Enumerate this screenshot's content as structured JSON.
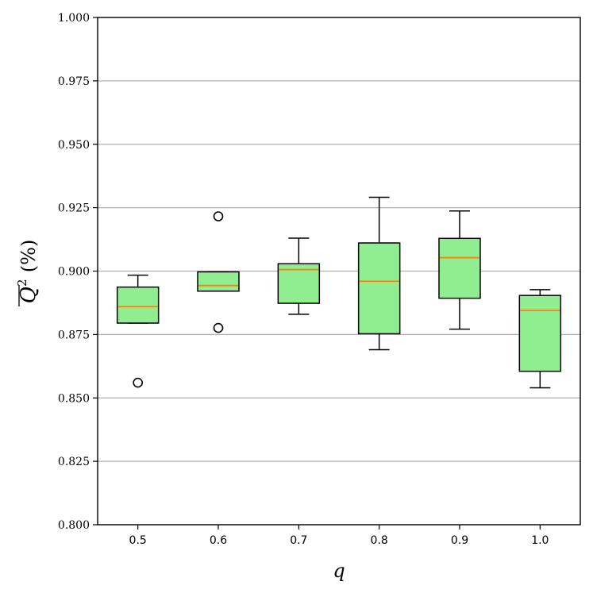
{
  "chart_data": {
    "type": "box",
    "xlabel": "q",
    "ylabel": "Q",
    "ylabel_superscript": "2",
    "ylabel_suffix": "(%)",
    "ylim": [
      0.8,
      1.0
    ],
    "yticks": [
      "0.800",
      "0.825",
      "0.850",
      "0.875",
      "0.900",
      "0.925",
      "0.950",
      "0.975",
      "1.000"
    ],
    "grid": "horizontal",
    "box_fill": "#90ee90",
    "median_color": "#ff7f0e",
    "categories": [
      "0.5",
      "0.6",
      "0.7",
      "0.8",
      "0.9",
      "1.0"
    ],
    "boxes": [
      {
        "whisker_low": 0.8795,
        "q1": 0.8795,
        "median": 0.886,
        "q3": 0.8937,
        "whisker_high": 0.8984,
        "outliers": [
          0.856
        ]
      },
      {
        "whisker_low": 0.8921,
        "q1": 0.8921,
        "median": 0.8943,
        "q3": 0.8997,
        "whisker_high": 0.8997,
        "outliers": [
          0.9216,
          0.8776
        ]
      },
      {
        "whisker_low": 0.883,
        "q1": 0.8873,
        "median": 0.9006,
        "q3": 0.9029,
        "whisker_high": 0.913,
        "outliers": []
      },
      {
        "whisker_low": 0.869,
        "q1": 0.8753,
        "median": 0.896,
        "q3": 0.9111,
        "whisker_high": 0.9291,
        "outliers": []
      },
      {
        "whisker_low": 0.8771,
        "q1": 0.8893,
        "median": 0.9053,
        "q3": 0.9129,
        "whisker_high": 0.9237,
        "outliers": []
      },
      {
        "whisker_low": 0.854,
        "q1": 0.8605,
        "median": 0.8845,
        "q3": 0.8904,
        "whisker_high": 0.8927,
        "outliers": []
      }
    ]
  }
}
